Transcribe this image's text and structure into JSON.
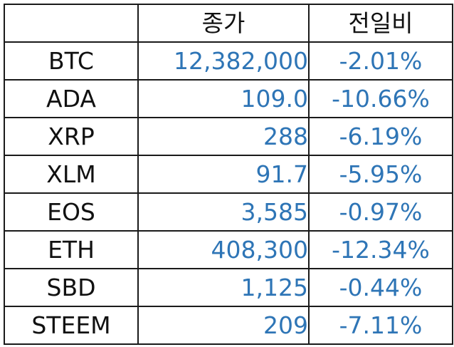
{
  "header": {
    "close_label": "종가",
    "change_label": "전일비"
  },
  "colors": {
    "value_text": "#2e75b6",
    "label_text": "#111111",
    "border": "#1a1a1a"
  },
  "rows": [
    {
      "coin": "BTC",
      "close": "12,382,000",
      "change": "-2.01%"
    },
    {
      "coin": "ADA",
      "close": "109.0",
      "change": "-10.66%"
    },
    {
      "coin": "XRP",
      "close": "288",
      "change": "-6.19%"
    },
    {
      "coin": "XLM",
      "close": "91.7",
      "change": "-5.95%"
    },
    {
      "coin": "EOS",
      "close": "3,585",
      "change": "-0.97%"
    },
    {
      "coin": "ETH",
      "close": "408,300",
      "change": "-12.34%"
    },
    {
      "coin": "SBD",
      "close": "1,125",
      "change": "-0.44%"
    },
    {
      "coin": "STEEM",
      "close": "209",
      "change": "-7.11%"
    }
  ]
}
